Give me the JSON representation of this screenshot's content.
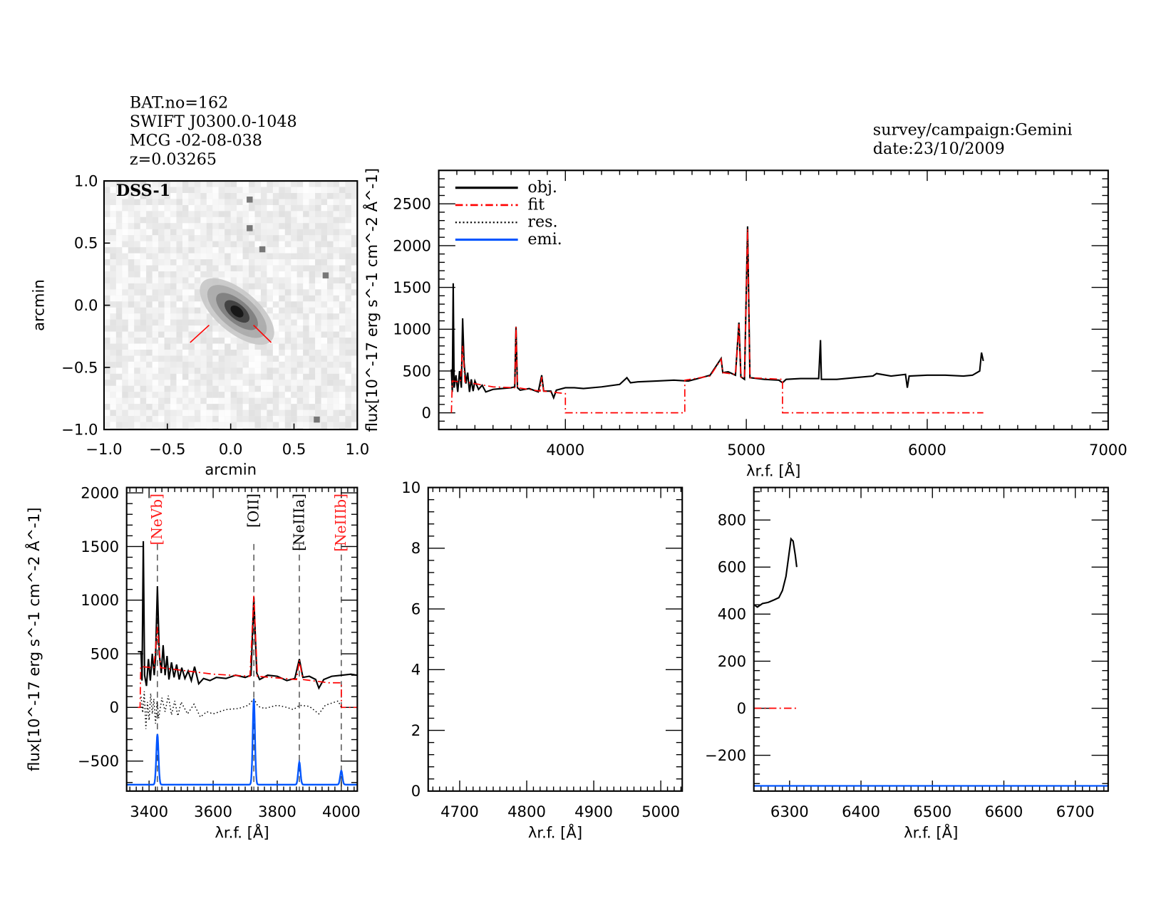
{
  "header": {
    "left_lines": [
      "BAT.no=162",
      "SWIFT J0300.0-1048",
      "MCG -02-08-038",
      "z=0.03265"
    ],
    "right_lines": [
      "survey/campaign:Gemini",
      "date:23/10/2009"
    ]
  },
  "colors": {
    "obj": "#000000",
    "fit": "#ff0000",
    "res": "#000000",
    "emi": "#0055ff",
    "line_label_red": "#ff2020"
  },
  "chart_data": [
    {
      "id": "image",
      "type": "image",
      "label": "DSS-1",
      "xlabel": "arcmin",
      "ylabel": "arcmin",
      "xlim": [
        -1.0,
        1.0
      ],
      "ylim": [
        -1.0,
        1.0
      ],
      "xticks": [
        "-1.0",
        "-0.5",
        "0.0",
        "0.5",
        "1.0"
      ],
      "yticks": [
        "-1.0",
        "-0.5",
        "0.0",
        "0.5",
        "1.0"
      ]
    },
    {
      "id": "full",
      "type": "line",
      "xlabel": "λr.f. [Å]",
      "ylabel": "flux[10^-17 erg s^-1 cm^-2 Å^-1]",
      "xlim": [
        3300,
        7000
      ],
      "ylim": [
        -200,
        2900
      ],
      "xticks": [
        4000,
        5000,
        6000,
        7000
      ],
      "yticks": [
        0,
        500,
        1000,
        1500,
        2000,
        2500
      ],
      "legend": {
        "placement": "top-left",
        "entries": [
          "obj.",
          "fit",
          "res.",
          "emi."
        ]
      },
      "series": [
        {
          "name": "obj.",
          "points": [
            [
              3370,
              520
            ],
            [
              3375,
              250
            ],
            [
              3380,
              1550
            ],
            [
              3385,
              300
            ],
            [
              3395,
              450
            ],
            [
              3405,
              250
            ],
            [
              3415,
              500
            ],
            [
              3425,
              300
            ],
            [
              3432,
              1130
            ],
            [
              3440,
              600
            ],
            [
              3450,
              350
            ],
            [
              3460,
              480
            ],
            [
              3470,
              250
            ],
            [
              3480,
              400
            ],
            [
              3490,
              260
            ],
            [
              3500,
              380
            ],
            [
              3520,
              280
            ],
            [
              3540,
              330
            ],
            [
              3560,
              250
            ],
            [
              3600,
              280
            ],
            [
              3650,
              290
            ],
            [
              3700,
              300
            ],
            [
              3720,
              310
            ],
            [
              3727,
              1030
            ],
            [
              3735,
              300
            ],
            [
              3750,
              270
            ],
            [
              3800,
              290
            ],
            [
              3850,
              250
            ],
            [
              3869,
              450
            ],
            [
              3880,
              260
            ],
            [
              3920,
              260
            ],
            [
              3935,
              180
            ],
            [
              3950,
              270
            ],
            [
              4000,
              300
            ],
            [
              4050,
              300
            ],
            [
              4100,
              290
            ],
            [
              4200,
              310
            ],
            [
              4300,
              340
            ],
            [
              4340,
              420
            ],
            [
              4360,
              360
            ],
            [
              4400,
              370
            ],
            [
              4500,
              380
            ],
            [
              4600,
              390
            ],
            [
              4680,
              380
            ],
            [
              4750,
              420
            ],
            [
              4800,
              450
            ],
            [
              4861,
              650
            ],
            [
              4870,
              480
            ],
            [
              4900,
              490
            ],
            [
              4940,
              450
            ],
            [
              4959,
              1080
            ],
            [
              4970,
              430
            ],
            [
              4990,
              400
            ],
            [
              5007,
              2230
            ],
            [
              5020,
              420
            ],
            [
              5100,
              400
            ],
            [
              5180,
              390
            ],
            [
              5200,
              360
            ],
            [
              5220,
              400
            ],
            [
              5300,
              410
            ],
            [
              5400,
              410
            ],
            [
              5410,
              870
            ],
            [
              5415,
              400
            ],
            [
              5500,
              400
            ],
            [
              5600,
              420
            ],
            [
              5700,
              440
            ],
            [
              5720,
              470
            ],
            [
              5800,
              440
            ],
            [
              5880,
              460
            ],
            [
              5890,
              300
            ],
            [
              5900,
              440
            ],
            [
              6000,
              450
            ],
            [
              6100,
              450
            ],
            [
              6200,
              440
            ],
            [
              6250,
              450
            ],
            [
              6290,
              500
            ],
            [
              6300,
              720
            ],
            [
              6310,
              620
            ]
          ]
        },
        {
          "name": "fit",
          "points": [
            [
              3370,
              0
            ],
            [
              3375,
              380
            ],
            [
              3420,
              370
            ],
            [
              3432,
              800
            ],
            [
              3445,
              370
            ],
            [
              3600,
              310
            ],
            [
              3720,
              300
            ],
            [
              3727,
              1030
            ],
            [
              3735,
              300
            ],
            [
              3860,
              260
            ],
            [
              3869,
              430
            ],
            [
              3880,
              260
            ],
            [
              4000,
              230
            ],
            [
              4000,
              0
            ],
            [
              4660,
              0
            ],
            [
              4660,
              390
            ],
            [
              4800,
              440
            ],
            [
              4861,
              640
            ],
            [
              4870,
              480
            ],
            [
              4940,
              460
            ],
            [
              4959,
              1060
            ],
            [
              4970,
              430
            ],
            [
              4990,
              420
            ],
            [
              5007,
              2200
            ],
            [
              5020,
              420
            ],
            [
              5200,
              400
            ],
            [
              5200,
              0
            ],
            [
              6310,
              0
            ]
          ]
        }
      ]
    },
    {
      "id": "blue",
      "type": "line",
      "xlabel": "λr.f. [Å]",
      "ylabel": "flux[10^-17 erg s^-1 cm^-2 Å^-1]",
      "xlim": [
        3330,
        4050
      ],
      "ylim": [
        -780,
        2050
      ],
      "xticks": [
        3400,
        3600,
        3800,
        4000
      ],
      "yticks": [
        -500,
        0,
        500,
        1000,
        1500,
        2000
      ],
      "emission_lines": [
        {
          "label": "[NeVb]",
          "wavelength": 3426,
          "color": "red"
        },
        {
          "label": "[OII]",
          "wavelength": 3727,
          "color": "black"
        },
        {
          "label": "[NeIIIa]",
          "wavelength": 3869,
          "color": "black"
        },
        {
          "label": "[NeIIIb]",
          "wavelength": 4000,
          "color": "red"
        }
      ],
      "series": [
        {
          "name": "obj.",
          "points": [
            [
              3365,
              520
            ],
            [
              3375,
              520
            ],
            [
              3378,
              250
            ],
            [
              3382,
              1550
            ],
            [
              3386,
              300
            ],
            [
              3392,
              200
            ],
            [
              3398,
              450
            ],
            [
              3404,
              250
            ],
            [
              3410,
              500
            ],
            [
              3416,
              300
            ],
            [
              3420,
              460
            ],
            [
              3426,
              1130
            ],
            [
              3432,
              500
            ],
            [
              3438,
              320
            ],
            [
              3444,
              580
            ],
            [
              3450,
              300
            ],
            [
              3456,
              480
            ],
            [
              3462,
              260
            ],
            [
              3470,
              420
            ],
            [
              3478,
              280
            ],
            [
              3486,
              400
            ],
            [
              3494,
              260
            ],
            [
              3502,
              370
            ],
            [
              3512,
              270
            ],
            [
              3522,
              340
            ],
            [
              3532,
              250
            ],
            [
              3542,
              380
            ],
            [
              3555,
              220
            ],
            [
              3570,
              270
            ],
            [
              3590,
              250
            ],
            [
              3610,
              280
            ],
            [
              3640,
              270
            ],
            [
              3670,
              300
            ],
            [
              3700,
              280
            ],
            [
              3718,
              300
            ],
            [
              3727,
              1030
            ],
            [
              3736,
              320
            ],
            [
              3745,
              260
            ],
            [
              3770,
              300
            ],
            [
              3800,
              290
            ],
            [
              3830,
              250
            ],
            [
              3855,
              270
            ],
            [
              3869,
              450
            ],
            [
              3880,
              280
            ],
            [
              3900,
              290
            ],
            [
              3920,
              260
            ],
            [
              3930,
              180
            ],
            [
              3945,
              260
            ],
            [
              3970,
              290
            ],
            [
              4000,
              300
            ],
            [
              4030,
              310
            ],
            [
              4050,
              300
            ]
          ]
        },
        {
          "name": "fit",
          "points": [
            [
              3365,
              0
            ],
            [
              3372,
              0
            ],
            [
              3374,
              380
            ],
            [
              3415,
              370
            ],
            [
              3426,
              750
            ],
            [
              3436,
              370
            ],
            [
              3600,
              310
            ],
            [
              3715,
              290
            ],
            [
              3727,
              1040
            ],
            [
              3738,
              290
            ],
            [
              3860,
              260
            ],
            [
              3869,
              440
            ],
            [
              3880,
              260
            ],
            [
              3960,
              230
            ],
            [
              4000,
              230
            ],
            [
              4000,
              0
            ],
            [
              4050,
              0
            ]
          ]
        },
        {
          "name": "res.",
          "points": [
            [
              3375,
              100
            ],
            [
              3380,
              -50
            ],
            [
              3385,
              150
            ],
            [
              3390,
              -200
            ],
            [
              3395,
              50
            ],
            [
              3400,
              -120
            ],
            [
              3405,
              130
            ],
            [
              3410,
              -60
            ],
            [
              3415,
              80
            ],
            [
              3420,
              -150
            ],
            [
              3425,
              60
            ],
            [
              3430,
              -100
            ],
            [
              3440,
              90
            ],
            [
              3450,
              -40
            ],
            [
              3460,
              110
            ],
            [
              3470,
              -70
            ],
            [
              3480,
              60
            ],
            [
              3490,
              -80
            ],
            [
              3500,
              50
            ],
            [
              3520,
              -60
            ],
            [
              3540,
              30
            ],
            [
              3560,
              -90
            ],
            [
              3580,
              -40
            ],
            [
              3600,
              -60
            ],
            [
              3640,
              -20
            ],
            [
              3680,
              -10
            ],
            [
              3710,
              20
            ],
            [
              3727,
              80
            ],
            [
              3740,
              10
            ],
            [
              3760,
              -10
            ],
            [
              3800,
              20
            ],
            [
              3830,
              0
            ],
            [
              3850,
              -20
            ],
            [
              3870,
              20
            ],
            [
              3900,
              10
            ],
            [
              3930,
              -60
            ],
            [
              3950,
              20
            ],
            [
              3990,
              60
            ],
            [
              4000,
              0
            ]
          ]
        },
        {
          "name": "emi.",
          "baseline": -720,
          "peaks": [
            [
              3426,
              -250
            ],
            [
              3727,
              80
            ],
            [
              3869,
              -510
            ],
            [
              4000,
              -590
            ]
          ]
        }
      ]
    },
    {
      "id": "hbeta",
      "type": "line",
      "xlabel": "λr.f. [Å]",
      "xlim": [
        4653,
        5032
      ],
      "ylim": [
        0,
        10
      ],
      "xticks": [
        4700,
        4800,
        4900,
        5000
      ],
      "yticks": [
        0,
        2,
        4,
        6,
        8,
        10
      ],
      "series": []
    },
    {
      "id": "halpha",
      "type": "line",
      "xlabel": "λr.f. [Å]",
      "xlim": [
        6250,
        6746
      ],
      "ylim": [
        -352,
        938
      ],
      "xticks": [
        6300,
        6400,
        6500,
        6600,
        6700
      ],
      "yticks": [
        -200,
        0,
        200,
        400,
        600,
        800
      ],
      "series": [
        {
          "name": "obj.",
          "points": [
            [
              6250,
              440
            ],
            [
              6255,
              430
            ],
            [
              6262,
              445
            ],
            [
              6270,
              450
            ],
            [
              6278,
              460
            ],
            [
              6285,
              470
            ],
            [
              6290,
              500
            ],
            [
              6295,
              560
            ],
            [
              6299,
              650
            ],
            [
              6302,
              720
            ],
            [
              6305,
              710
            ],
            [
              6308,
              650
            ],
            [
              6310,
              600
            ]
          ]
        },
        {
          "name": "fit",
          "points": [
            [
              6250,
              0
            ],
            [
              6310,
              0
            ]
          ]
        },
        {
          "name": "emi.",
          "baseline": -330,
          "peaks": []
        }
      ]
    }
  ]
}
